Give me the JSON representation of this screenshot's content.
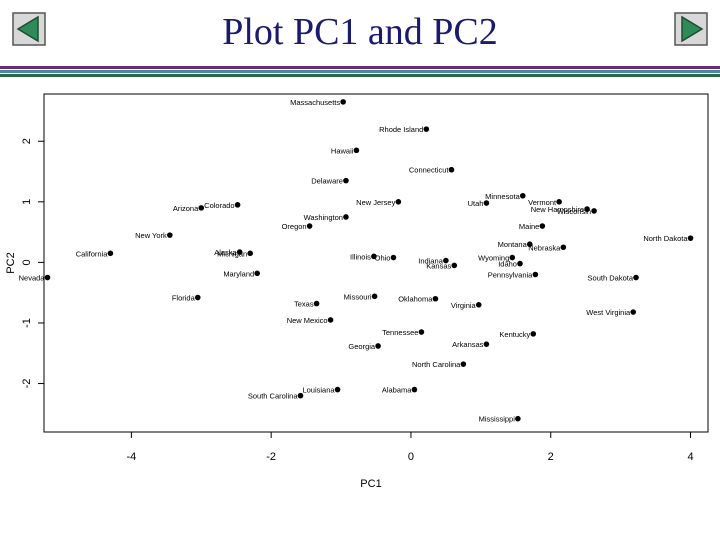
{
  "slide": {
    "title": "Plot PC1 and PC2",
    "nav": {
      "prev_icon": "back-arrow-icon",
      "next_icon": "forward-arrow-icon"
    },
    "colors": {
      "title": "#1a1a6e",
      "rule_top": "#6a2a7a",
      "rule_mid": "#4a8a9a",
      "rule_bottom": "#2a6a4a",
      "button_face": "#2e8b57"
    }
  },
  "chart_data": {
    "type": "scatter",
    "title": "",
    "xlabel": "PC1",
    "ylabel": "PC2",
    "xlim": [
      -5.25,
      4.25
    ],
    "ylim": [
      -2.8,
      2.78
    ],
    "xticks": [
      -4,
      -2,
      0,
      2,
      4
    ],
    "yticks": [
      -2,
      -1,
      0,
      1,
      2
    ],
    "grid": false,
    "points": [
      {
        "label": "Massachusetts",
        "x": -0.97,
        "y": 2.65
      },
      {
        "label": "Rhode Island",
        "x": 0.22,
        "y": 2.2
      },
      {
        "label": "Hawaii",
        "x": -0.78,
        "y": 1.85
      },
      {
        "label": "Connecticut",
        "x": 0.58,
        "y": 1.53
      },
      {
        "label": "Delaware",
        "x": -0.93,
        "y": 1.35
      },
      {
        "label": "New Jersey",
        "x": -0.18,
        "y": 1.0
      },
      {
        "label": "Colorado",
        "x": -2.48,
        "y": 0.95
      },
      {
        "label": "Arizona",
        "x": -3.0,
        "y": 0.9
      },
      {
        "label": "Washington",
        "x": -0.93,
        "y": 0.75
      },
      {
        "label": "Oregon",
        "x": -1.45,
        "y": 0.6
      },
      {
        "label": "New York",
        "x": -3.45,
        "y": 0.45
      },
      {
        "label": "Utah",
        "x": 1.08,
        "y": 0.98
      },
      {
        "label": "Minnesota",
        "x": 1.6,
        "y": 1.1
      },
      {
        "label": "Vermont",
        "x": 2.12,
        "y": 1.0
      },
      {
        "label": "New Hampshire",
        "x": 2.52,
        "y": 0.88
      },
      {
        "label": "Wisconsin",
        "x": 2.62,
        "y": 0.85
      },
      {
        "label": "Maine",
        "x": 1.88,
        "y": 0.6
      },
      {
        "label": "North Dakota",
        "x": 4.0,
        "y": 0.4
      },
      {
        "label": "Montana",
        "x": 1.7,
        "y": 0.3
      },
      {
        "label": "Nebraska",
        "x": 2.18,
        "y": 0.25
      },
      {
        "label": "Wyoming",
        "x": 1.45,
        "y": 0.08
      },
      {
        "label": "Idaho",
        "x": 1.56,
        "y": -0.02
      },
      {
        "label": "Indiana",
        "x": 0.5,
        "y": 0.03
      },
      {
        "label": "Kansas",
        "x": 0.62,
        "y": -0.05
      },
      {
        "label": "Pennsylvania",
        "x": 1.78,
        "y": -0.2
      },
      {
        "label": "South Dakota",
        "x": 3.22,
        "y": -0.25
      },
      {
        "label": "California",
        "x": -4.3,
        "y": 0.15
      },
      {
        "label": "Alaska",
        "x": -2.45,
        "y": 0.17
      },
      {
        "label": "Michigan",
        "x": -2.3,
        "y": 0.15
      },
      {
        "label": "Illinois",
        "x": -0.53,
        "y": 0.1
      },
      {
        "label": "Ohio",
        "x": -0.25,
        "y": 0.08
      },
      {
        "label": "Maryland",
        "x": -2.2,
        "y": -0.18
      },
      {
        "label": "Nevada",
        "x": -5.2,
        "y": -0.25
      },
      {
        "label": "Florida",
        "x": -3.05,
        "y": -0.58
      },
      {
        "label": "Texas",
        "x": -1.35,
        "y": -0.68
      },
      {
        "label": "Missouri",
        "x": -0.52,
        "y": -0.56
      },
      {
        "label": "New Mexico",
        "x": -1.15,
        "y": -0.95
      },
      {
        "label": "Oklahoma",
        "x": 0.35,
        "y": -0.6
      },
      {
        "label": "Virginia",
        "x": 0.97,
        "y": -0.7
      },
      {
        "label": "West Virginia",
        "x": 3.18,
        "y": -0.82
      },
      {
        "label": "Tennessee",
        "x": 0.15,
        "y": -1.15
      },
      {
        "label": "Kentucky",
        "x": 1.75,
        "y": -1.18
      },
      {
        "label": "Arkansas",
        "x": 1.08,
        "y": -1.35
      },
      {
        "label": "Georgia",
        "x": -0.47,
        "y": -1.38
      },
      {
        "label": "North Carolina",
        "x": 0.75,
        "y": -1.68
      },
      {
        "label": "Alabama",
        "x": 0.05,
        "y": -2.1
      },
      {
        "label": "South Carolina",
        "x": -1.58,
        "y": -2.2
      },
      {
        "label": "Louisiana",
        "x": -1.05,
        "y": -2.1
      },
      {
        "label": "Mississippi",
        "x": 1.53,
        "y": -2.58
      }
    ]
  }
}
